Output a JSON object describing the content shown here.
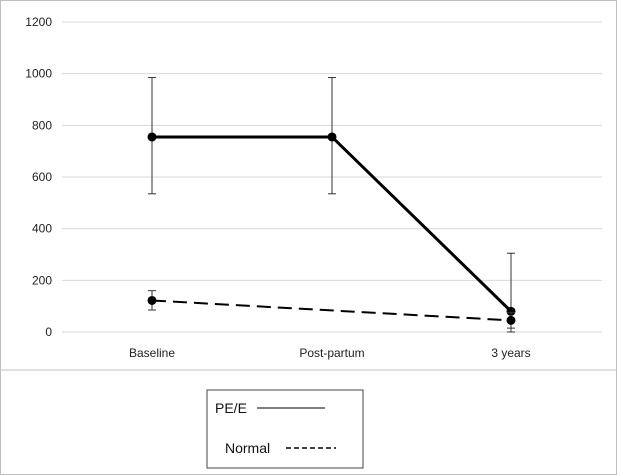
{
  "chart_data": {
    "type": "line",
    "categories": [
      "Baseline",
      "Post-partum",
      "3 years"
    ],
    "ylim": [
      0,
      1200
    ],
    "yticks": [
      0,
      200,
      400,
      600,
      800,
      1000,
      1200
    ],
    "y_tick_labels": [
      "0",
      "200",
      "400",
      "600",
      "800",
      "1000",
      "1200"
    ],
    "grid": "horizontal",
    "legend_position": "bottom-left",
    "series": [
      {
        "name": "PE/E",
        "line_style": "solid",
        "color": "#000000",
        "values": [
          755,
          755,
          80
        ],
        "error_upper": [
          985,
          985,
          305
        ],
        "error_lower": [
          535,
          535,
          0
        ]
      },
      {
        "name": "Normal",
        "line_style": "dashed",
        "color": "#000000",
        "values": [
          122,
          null,
          45
        ],
        "error_upper": [
          160,
          null,
          75
        ],
        "error_lower": [
          85,
          null,
          15
        ]
      }
    ],
    "legend": {
      "entries": [
        {
          "label": "PE/E",
          "swatch": "———"
        },
        {
          "label": "Normal",
          "swatch": "------"
        }
      ]
    },
    "colors": {
      "grid": "#d9d9d9",
      "frame": "#bfbfbf",
      "series": "#000000"
    }
  }
}
